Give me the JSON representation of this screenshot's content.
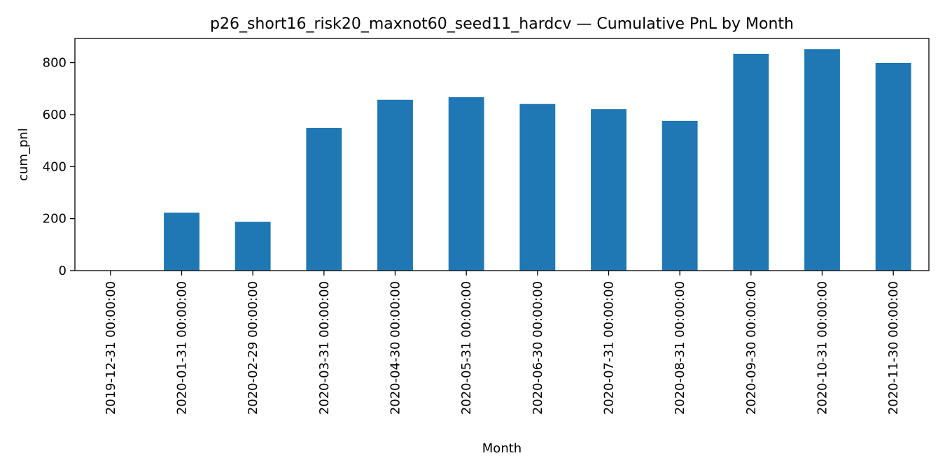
{
  "chart_data": {
    "type": "bar",
    "title": "p26_short16_risk20_maxnot60_seed11_hardcv — Cumulative PnL by Month",
    "xlabel": "Month",
    "ylabel": "cum_pnl",
    "ylim": [
      0,
      893
    ],
    "yticks": [
      0,
      200,
      400,
      600,
      800
    ],
    "grid": false,
    "categories": [
      "2019-12-31 00:00:00",
      "2020-01-31 00:00:00",
      "2020-02-29 00:00:00",
      "2020-03-31 00:00:00",
      "2020-04-30 00:00:00",
      "2020-05-31 00:00:00",
      "2020-06-30 00:00:00",
      "2020-07-31 00:00:00",
      "2020-08-31 00:00:00",
      "2020-09-30 00:00:00",
      "2020-10-31 00:00:00",
      "2020-11-30 00:00:00"
    ],
    "values": [
      0,
      223,
      188,
      549,
      657,
      667,
      641,
      621,
      576,
      834,
      852,
      799
    ],
    "color": "#1f77b4"
  }
}
